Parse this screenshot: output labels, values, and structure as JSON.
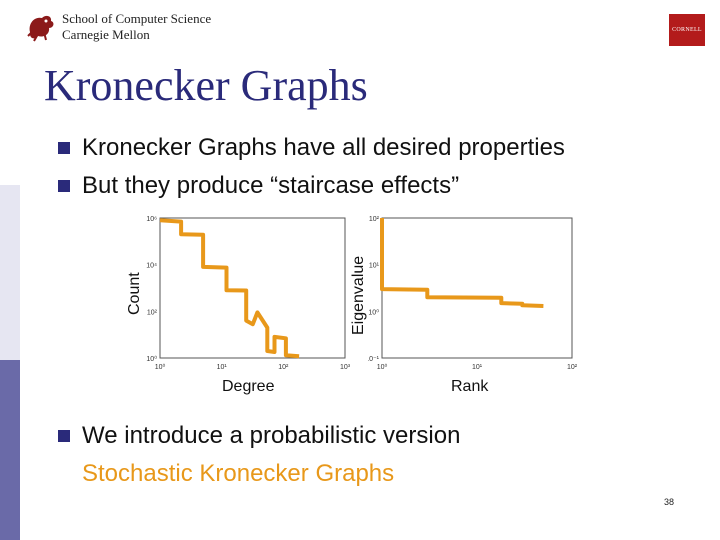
{
  "header": {
    "school_line1": "School of Computer Science",
    "school_line2": "Carnegie Mellon",
    "right_logo_text": "CORNELL"
  },
  "title": "Kronecker Graphs",
  "bullets": [
    "Kronecker Graphs have all desired properties",
    "But they produce “staircase effects”",
    "We introduce a probabilistic version"
  ],
  "sub_bullet": "Stochastic Kronecker Graphs",
  "page_number": "38",
  "colors": {
    "accent": "#e8981a",
    "title": "#2a2a7a",
    "cornell_red": "#b31b1b"
  },
  "chart_data": [
    {
      "type": "line",
      "xlabel": "Degree",
      "ylabel": "Count",
      "x_scale": "log",
      "y_scale": "log",
      "xticks": [
        "10⁰",
        "10¹",
        "10²",
        "10³"
      ],
      "yticks": [
        "10⁰",
        "10²",
        "10⁴",
        "10⁶"
      ],
      "xlim": [
        1,
        1000
      ],
      "ylim": [
        1,
        1000000
      ],
      "series": [
        {
          "x": [
            1,
            2.2,
            2.2,
            5,
            5,
            12,
            12,
            25,
            25,
            32,
            38,
            55,
            55,
            72,
            72,
            110,
            110,
            180
          ],
          "y": [
            800000,
            700000,
            200000,
            190000,
            8000,
            7500,
            800,
            780,
            40,
            28,
            90,
            20,
            2,
            1.8,
            8,
            7,
            1.3,
            1.2
          ]
        }
      ]
    },
    {
      "type": "line",
      "xlabel": "Rank",
      "ylabel": "Eigenvalue",
      "x_scale": "log",
      "y_scale": "log",
      "xticks": [
        "10⁰",
        "10¹",
        "10²"
      ],
      "yticks": [
        "10⁻¹",
        "10⁰",
        "10¹",
        "10²"
      ],
      "xlim": [
        1,
        100
      ],
      "ylim": [
        0.1,
        100
      ],
      "series": [
        {
          "x": [
            1,
            1,
            3,
            3,
            18,
            18,
            30,
            30,
            50
          ],
          "y": [
            100,
            3,
            2.9,
            2.0,
            1.95,
            1.5,
            1.45,
            1.35,
            1.3
          ]
        }
      ]
    }
  ]
}
